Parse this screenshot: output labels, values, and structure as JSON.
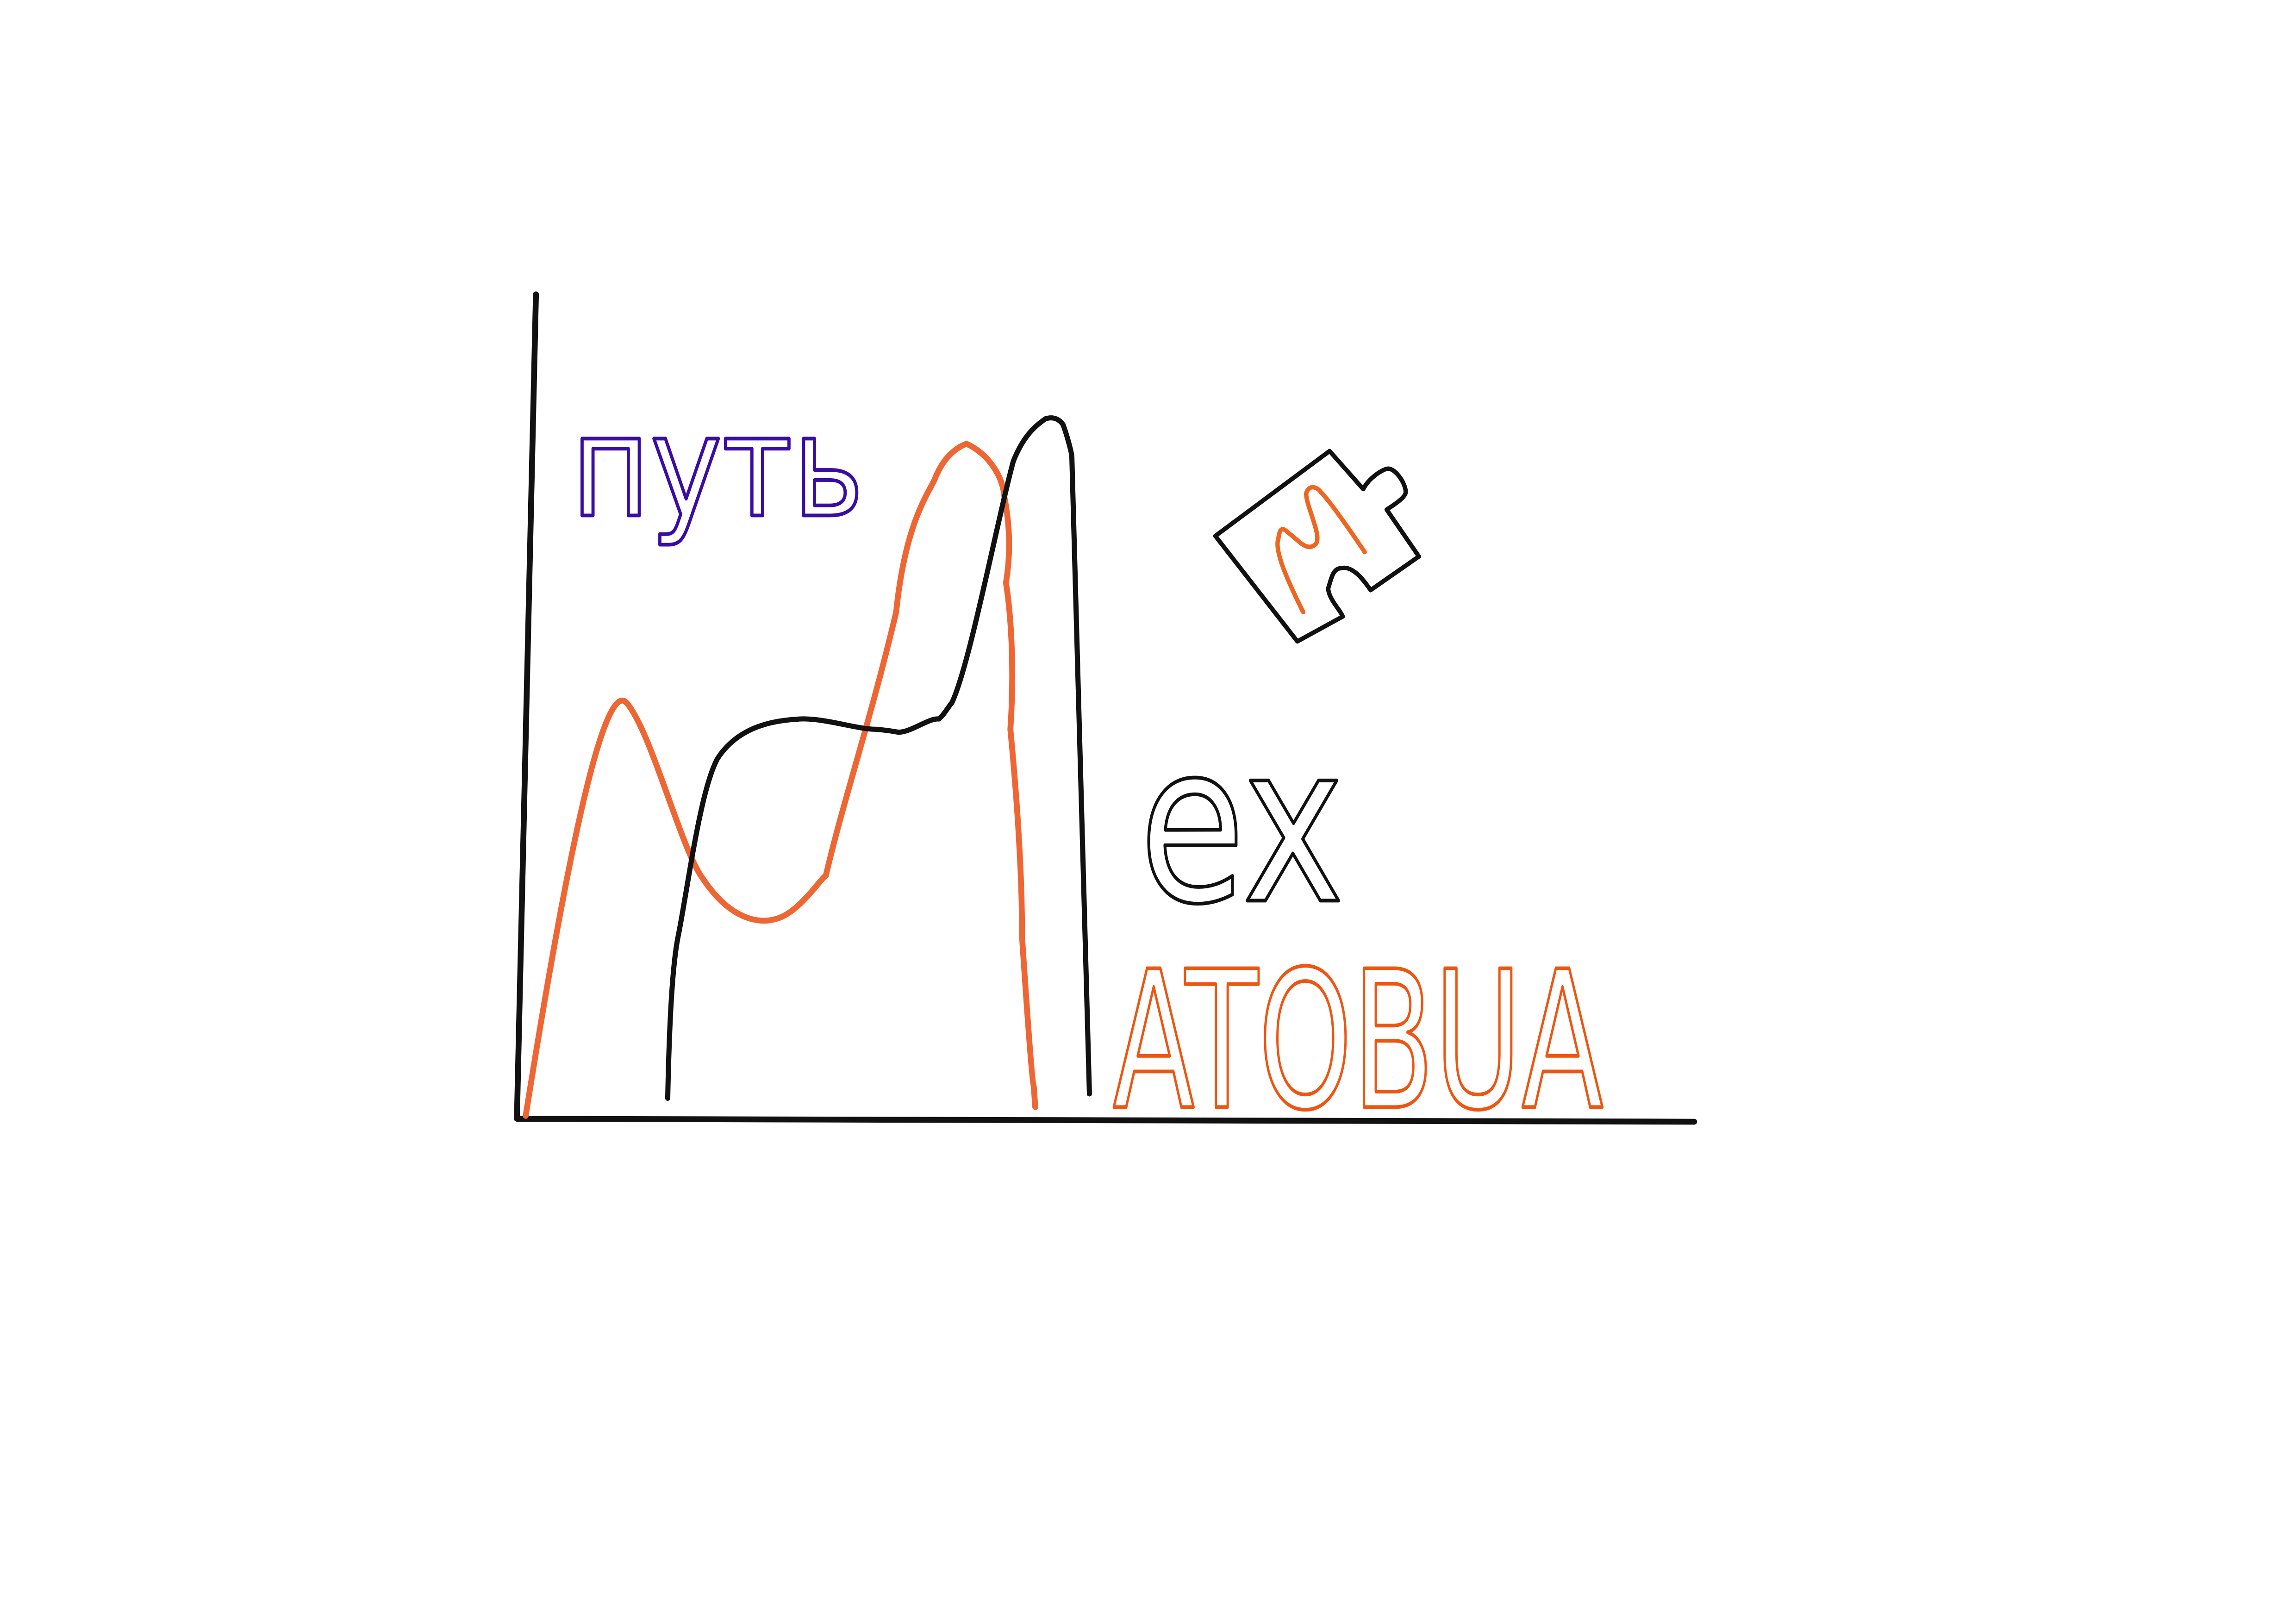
{
  "drawing": {
    "label_top": "путь",
    "label_middle": "ex",
    "label_bottom": "ATOBUA"
  }
}
